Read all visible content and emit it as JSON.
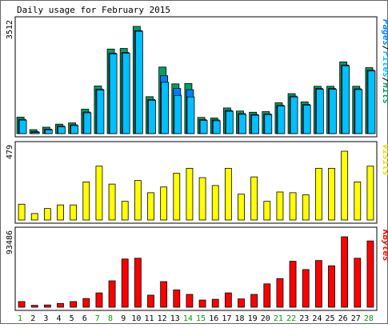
{
  "chart_data": [
    {
      "type": "bar",
      "panel": "top",
      "title": "Daily usage for February 2015",
      "ymax_label": "3512",
      "ylim": [
        0,
        3512
      ],
      "legend_parts": [
        "Pages",
        "/",
        "Files",
        "/",
        "Hits"
      ],
      "legend_colors": [
        "#0080ff",
        "#000000",
        "#00c0ff",
        "#000000",
        "#00a060"
      ],
      "categories": [
        "1",
        "2",
        "3",
        "4",
        "5",
        "6",
        "7",
        "8",
        "9",
        "10",
        "11",
        "12",
        "13",
        "14",
        "15",
        "16",
        "17",
        "18",
        "19",
        "20",
        "21",
        "22",
        "23",
        "24",
        "25",
        "26",
        "27",
        "28"
      ],
      "weekend_days": [
        "1",
        "7",
        "8",
        "14",
        "15",
        "21",
        "22",
        "28"
      ],
      "series": [
        {
          "name": "Hits",
          "color": "#00a060",
          "values": [
            540,
            130,
            210,
            310,
            350,
            800,
            1560,
            2770,
            2790,
            3512,
            1210,
            2180,
            1630,
            1640,
            530,
            510,
            840,
            740,
            700,
            720,
            1010,
            1310,
            1040,
            1550,
            1550,
            2350,
            1550,
            2160
          ]
        },
        {
          "name": "Files",
          "color": "#0080ff",
          "values": [
            520,
            120,
            200,
            300,
            340,
            760,
            1510,
            2690,
            2710,
            3430,
            1170,
            1950,
            1530,
            1490,
            510,
            500,
            810,
            710,
            680,
            700,
            980,
            1280,
            1010,
            1530,
            1530,
            2300,
            1520,
            2130
          ]
        },
        {
          "name": "Pages",
          "color": "#00c0ff",
          "values": [
            520,
            120,
            200,
            300,
            340,
            760,
            1510,
            2690,
            2710,
            3430,
            1170,
            1760,
            1330,
            1280,
            510,
            500,
            810,
            710,
            680,
            700,
            980,
            1280,
            1010,
            1530,
            1530,
            2300,
            1520,
            2130
          ]
        }
      ]
    },
    {
      "type": "bar",
      "panel": "middle",
      "ymax_label": "479",
      "ylim": [
        0,
        479
      ],
      "legend": "Visits",
      "series": [
        {
          "name": "Visits",
          "color": "#ffff00",
          "values": [
            110,
            45,
            80,
            105,
            105,
            265,
            375,
            250,
            130,
            275,
            190,
            230,
            325,
            360,
            295,
            240,
            360,
            180,
            300,
            130,
            195,
            190,
            175,
            360,
            360,
            479,
            265,
            375
          ]
        }
      ]
    },
    {
      "type": "bar",
      "panel": "bottom",
      "ymax_label": "93486",
      "ylim": [
        0,
        93486
      ],
      "legend": "KBytes",
      "series": [
        {
          "name": "KBytes",
          "color": "#ff0000",
          "values": [
            7500,
            2500,
            3000,
            5000,
            7500,
            11500,
            19000,
            35000,
            64000,
            65000,
            16000,
            34000,
            23000,
            17000,
            9500,
            10500,
            19000,
            11000,
            17000,
            31000,
            38000,
            61000,
            50000,
            62000,
            55000,
            93486,
            65000,
            88000
          ]
        }
      ]
    }
  ]
}
